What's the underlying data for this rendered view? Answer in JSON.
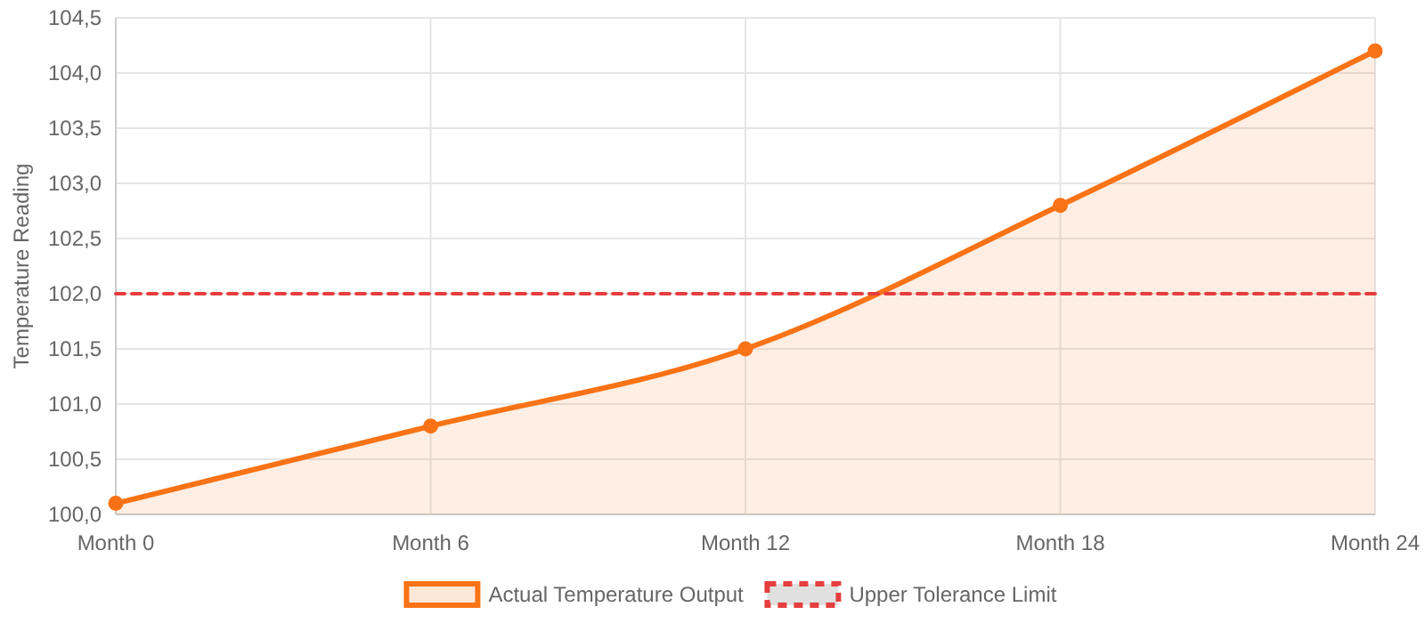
{
  "chart_data": {
    "type": "area",
    "ylabel": "Temperature Reading",
    "categories": [
      "Month 0",
      "Month 6",
      "Month 12",
      "Month 18",
      "Month 24"
    ],
    "series": [
      {
        "name": "Actual Temperature Output",
        "color": "#f97316",
        "values": [
          100.1,
          100.8,
          101.5,
          102.8,
          104.2
        ]
      },
      {
        "name": "Upper Tolerance Limit",
        "type": "line",
        "color": "#e53e3e",
        "line_style": "dashed",
        "marker": "none",
        "values": [
          102,
          102,
          102,
          102,
          102
        ]
      }
    ],
    "ylim": [
      100,
      104.5
    ],
    "yticks": [
      {
        "value": 100,
        "label": "100,0"
      },
      {
        "value": 100.5,
        "label": "100,5"
      },
      {
        "value": 101,
        "label": "101,0"
      },
      {
        "value": 101.5,
        "label": "101,5"
      },
      {
        "value": 102,
        "label": "102,0"
      },
      {
        "value": 102.5,
        "label": "102,5"
      },
      {
        "value": 103,
        "label": "103,0"
      },
      {
        "value": 103.5,
        "label": "103,5"
      },
      {
        "value": 104,
        "label": "104,0"
      },
      {
        "value": 104.5,
        "label": "104,5"
      }
    ],
    "grid": true,
    "legend": "bottom",
    "marker": "circle",
    "line_style": "solid"
  }
}
